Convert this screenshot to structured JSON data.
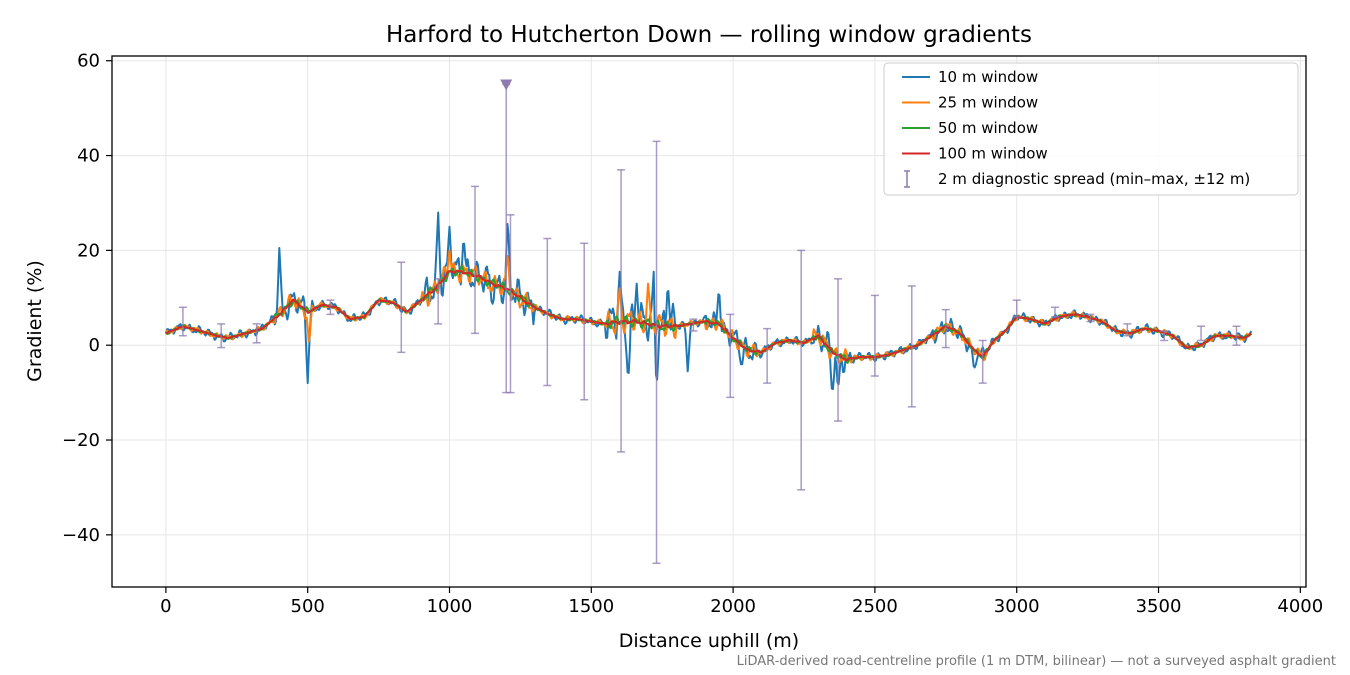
{
  "chart_data": {
    "type": "line",
    "title": "Harford to Hutcherton Down — rolling window gradients",
    "xlabel": "Distance uphill (m)",
    "ylabel": "Gradient (%)",
    "xlim": [
      -190,
      4020
    ],
    "ylim": [
      -51,
      61
    ],
    "xticks": [
      0,
      500,
      1000,
      1500,
      2000,
      2500,
      3000,
      3500,
      4000
    ],
    "yticks": [
      -40,
      -20,
      0,
      20,
      40,
      60
    ],
    "grid": true,
    "legend_position": "top-right",
    "footnote": "LiDAR-derived road-centreline profile (1 m DTM, bilinear) — not a surveyed asphalt gradient",
    "marker": {
      "x": 1200,
      "y": 55,
      "shape": "triangle-down",
      "color": "#8c7ab0"
    },
    "profile": {
      "x": [
        0,
        60,
        120,
        180,
        220,
        280,
        340,
        400,
        450,
        500,
        550,
        600,
        650,
        700,
        750,
        800,
        850,
        900,
        950,
        1000,
        1050,
        1100,
        1150,
        1200,
        1250,
        1300,
        1350,
        1400,
        1450,
        1500,
        1550,
        1600,
        1650,
        1700,
        1750,
        1800,
        1850,
        1900,
        1950,
        2000,
        2050,
        2100,
        2150,
        2200,
        2250,
        2300,
        2350,
        2400,
        2450,
        2500,
        2550,
        2600,
        2650,
        2700,
        2750,
        2800,
        2850,
        2880,
        2920,
        2960,
        3000,
        3050,
        3100,
        3150,
        3200,
        3250,
        3300,
        3350,
        3400,
        3450,
        3500,
        3550,
        3600,
        3650,
        3700,
        3750,
        3800,
        3830
      ],
      "y": [
        2.5,
        4,
        3,
        2,
        1.5,
        2.5,
        3.5,
        6.5,
        9.5,
        7,
        8.5,
        8,
        5.5,
        6,
        9.5,
        9,
        7,
        9.5,
        12,
        15.5,
        15.5,
        14.5,
        13,
        12,
        10,
        8,
        6.5,
        5.5,
        5.5,
        5,
        4.5,
        5,
        5,
        4.5,
        4,
        4,
        4.5,
        5,
        4.5,
        1.5,
        -1,
        -1.5,
        0.5,
        1,
        0.5,
        2,
        -1.5,
        -3,
        -2.5,
        -2.5,
        -2,
        -1,
        0,
        2,
        4,
        2.5,
        -1,
        -2.5,
        1,
        3,
        6,
        5.5,
        4.5,
        6,
        6.5,
        6,
        5,
        3,
        2.5,
        3.5,
        3,
        2,
        -0.5,
        0,
        2,
        2,
        1.5,
        2.5
      ]
    },
    "series": [
      {
        "name": "10 m window",
        "color": "#1f77b4",
        "noise": 3.2,
        "spikes": [
          [
            400,
            20.5
          ],
          [
            500,
            -8
          ],
          [
            960,
            28
          ],
          [
            1000,
            25
          ],
          [
            1050,
            23
          ],
          [
            1150,
            8.5
          ],
          [
            1205,
            27
          ],
          [
            1600,
            15.5
          ],
          [
            1630,
            -8
          ],
          [
            1660,
            13
          ],
          [
            1720,
            15.5
          ],
          [
            1730,
            -9
          ],
          [
            1770,
            13.5
          ],
          [
            1840,
            -5.5
          ],
          [
            1950,
            12.5
          ],
          [
            2030,
            -5
          ],
          [
            2350,
            -11
          ],
          [
            2370,
            -10
          ],
          [
            2850,
            -5.5
          ]
        ]
      },
      {
        "name": "25 m window",
        "color": "#ff7f0e",
        "noise": 2.0,
        "spikes": [
          [
            505,
            0
          ],
          [
            1000,
            20
          ],
          [
            1205,
            19.5
          ],
          [
            1600,
            12
          ],
          [
            1700,
            13
          ]
        ]
      },
      {
        "name": "50 m window",
        "color": "#2ca02c",
        "noise": 0.9,
        "spikes": []
      },
      {
        "name": "100 m window",
        "color": "#d62728",
        "noise": 0.3,
        "spikes": []
      }
    ],
    "errorbars": {
      "name": "2 m diagnostic spread (min–max, ±12 m)",
      "color": "#8c7ab0",
      "points": [
        {
          "x": 60,
          "lo": 2,
          "hi": 8
        },
        {
          "x": 195,
          "lo": -0.5,
          "hi": 4.5
        },
        {
          "x": 320,
          "lo": 0.5,
          "hi": 4.5
        },
        {
          "x": 580,
          "lo": 6.5,
          "hi": 9.5
        },
        {
          "x": 830,
          "lo": -1.5,
          "hi": 17.5
        },
        {
          "x": 960,
          "lo": 4.5,
          "hi": 14
        },
        {
          "x": 1090,
          "lo": 2.5,
          "hi": 33.5
        },
        {
          "x": 1200,
          "lo": -10,
          "hi": 55
        },
        {
          "x": 1215,
          "lo": -10,
          "hi": 27.5
        },
        {
          "x": 1345,
          "lo": -8.5,
          "hi": 22.5
        },
        {
          "x": 1475,
          "lo": -11.5,
          "hi": 21.5
        },
        {
          "x": 1605,
          "lo": -22.5,
          "hi": 37
        },
        {
          "x": 1730,
          "lo": -46,
          "hi": 43
        },
        {
          "x": 1860,
          "lo": 3,
          "hi": 5.5
        },
        {
          "x": 1990,
          "lo": -11,
          "hi": 6.5
        },
        {
          "x": 2120,
          "lo": -8,
          "hi": 3.5
        },
        {
          "x": 2240,
          "lo": -30.5,
          "hi": 20
        },
        {
          "x": 2370,
          "lo": -16,
          "hi": 14
        },
        {
          "x": 2500,
          "lo": -6.5,
          "hi": 10.5
        },
        {
          "x": 2630,
          "lo": -13,
          "hi": 12.5
        },
        {
          "x": 2750,
          "lo": -0.5,
          "hi": 7.5
        },
        {
          "x": 2880,
          "lo": -8,
          "hi": 1
        },
        {
          "x": 3000,
          "lo": 6,
          "hi": 9.5
        },
        {
          "x": 3135,
          "lo": 6,
          "hi": 8
        },
        {
          "x": 3260,
          "lo": 5,
          "hi": 6.5
        },
        {
          "x": 3390,
          "lo": 2,
          "hi": 4.5
        },
        {
          "x": 3520,
          "lo": 1,
          "hi": 3
        },
        {
          "x": 3650,
          "lo": 1,
          "hi": 4
        },
        {
          "x": 3775,
          "lo": 0,
          "hi": 4
        }
      ]
    }
  }
}
